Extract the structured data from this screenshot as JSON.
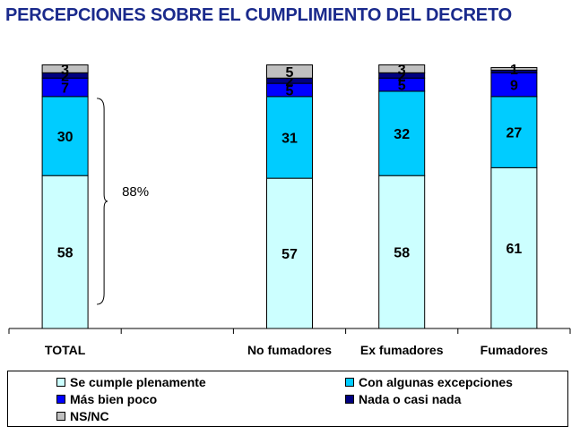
{
  "title": "PERCEPCIONES SOBRE EL CUMPLIMIENTO DEL DECRETO",
  "chart_data": {
    "type": "bar",
    "stacked": true,
    "categories": [
      "TOTAL",
      "",
      "No fumadores",
      "Ex fumadores",
      "Fumadores"
    ],
    "series": [
      {
        "name": "Se cumple plenamente",
        "color": "#ccffff",
        "values": [
          58,
          null,
          57,
          58,
          61
        ]
      },
      {
        "name": "Con algunas excepciones",
        "color": "#00ccff",
        "values": [
          30,
          null,
          31,
          32,
          27
        ]
      },
      {
        "name": "Más bien poco",
        "color": "#0000ff",
        "values": [
          7,
          null,
          5,
          5,
          9
        ]
      },
      {
        "name": "Nada o casi nada",
        "color": "#000080",
        "values": [
          2,
          null,
          2,
          2,
          1
        ]
      },
      {
        "name": "NS/NC",
        "color": "#c0c0c0",
        "values": [
          3,
          null,
          5,
          3,
          1
        ]
      }
    ],
    "stack_labels": [
      [
        "58",
        "30",
        "7",
        "2",
        "3"
      ],
      [
        "",
        "",
        "",
        "",
        ""
      ],
      [
        "57",
        "31",
        "5",
        "2",
        "5"
      ],
      [
        "58",
        "32",
        "5",
        "2",
        "3"
      ],
      [
        "61",
        "27",
        "9",
        "",
        "1"
      ]
    ],
    "annotation": {
      "text": "88%",
      "category": "TOTAL",
      "spans_series": [
        "Se cumple plenamente",
        "Con algunas excepciones"
      ]
    },
    "ylim": [
      0,
      100
    ],
    "grid": false,
    "legend_position": "bottom"
  }
}
